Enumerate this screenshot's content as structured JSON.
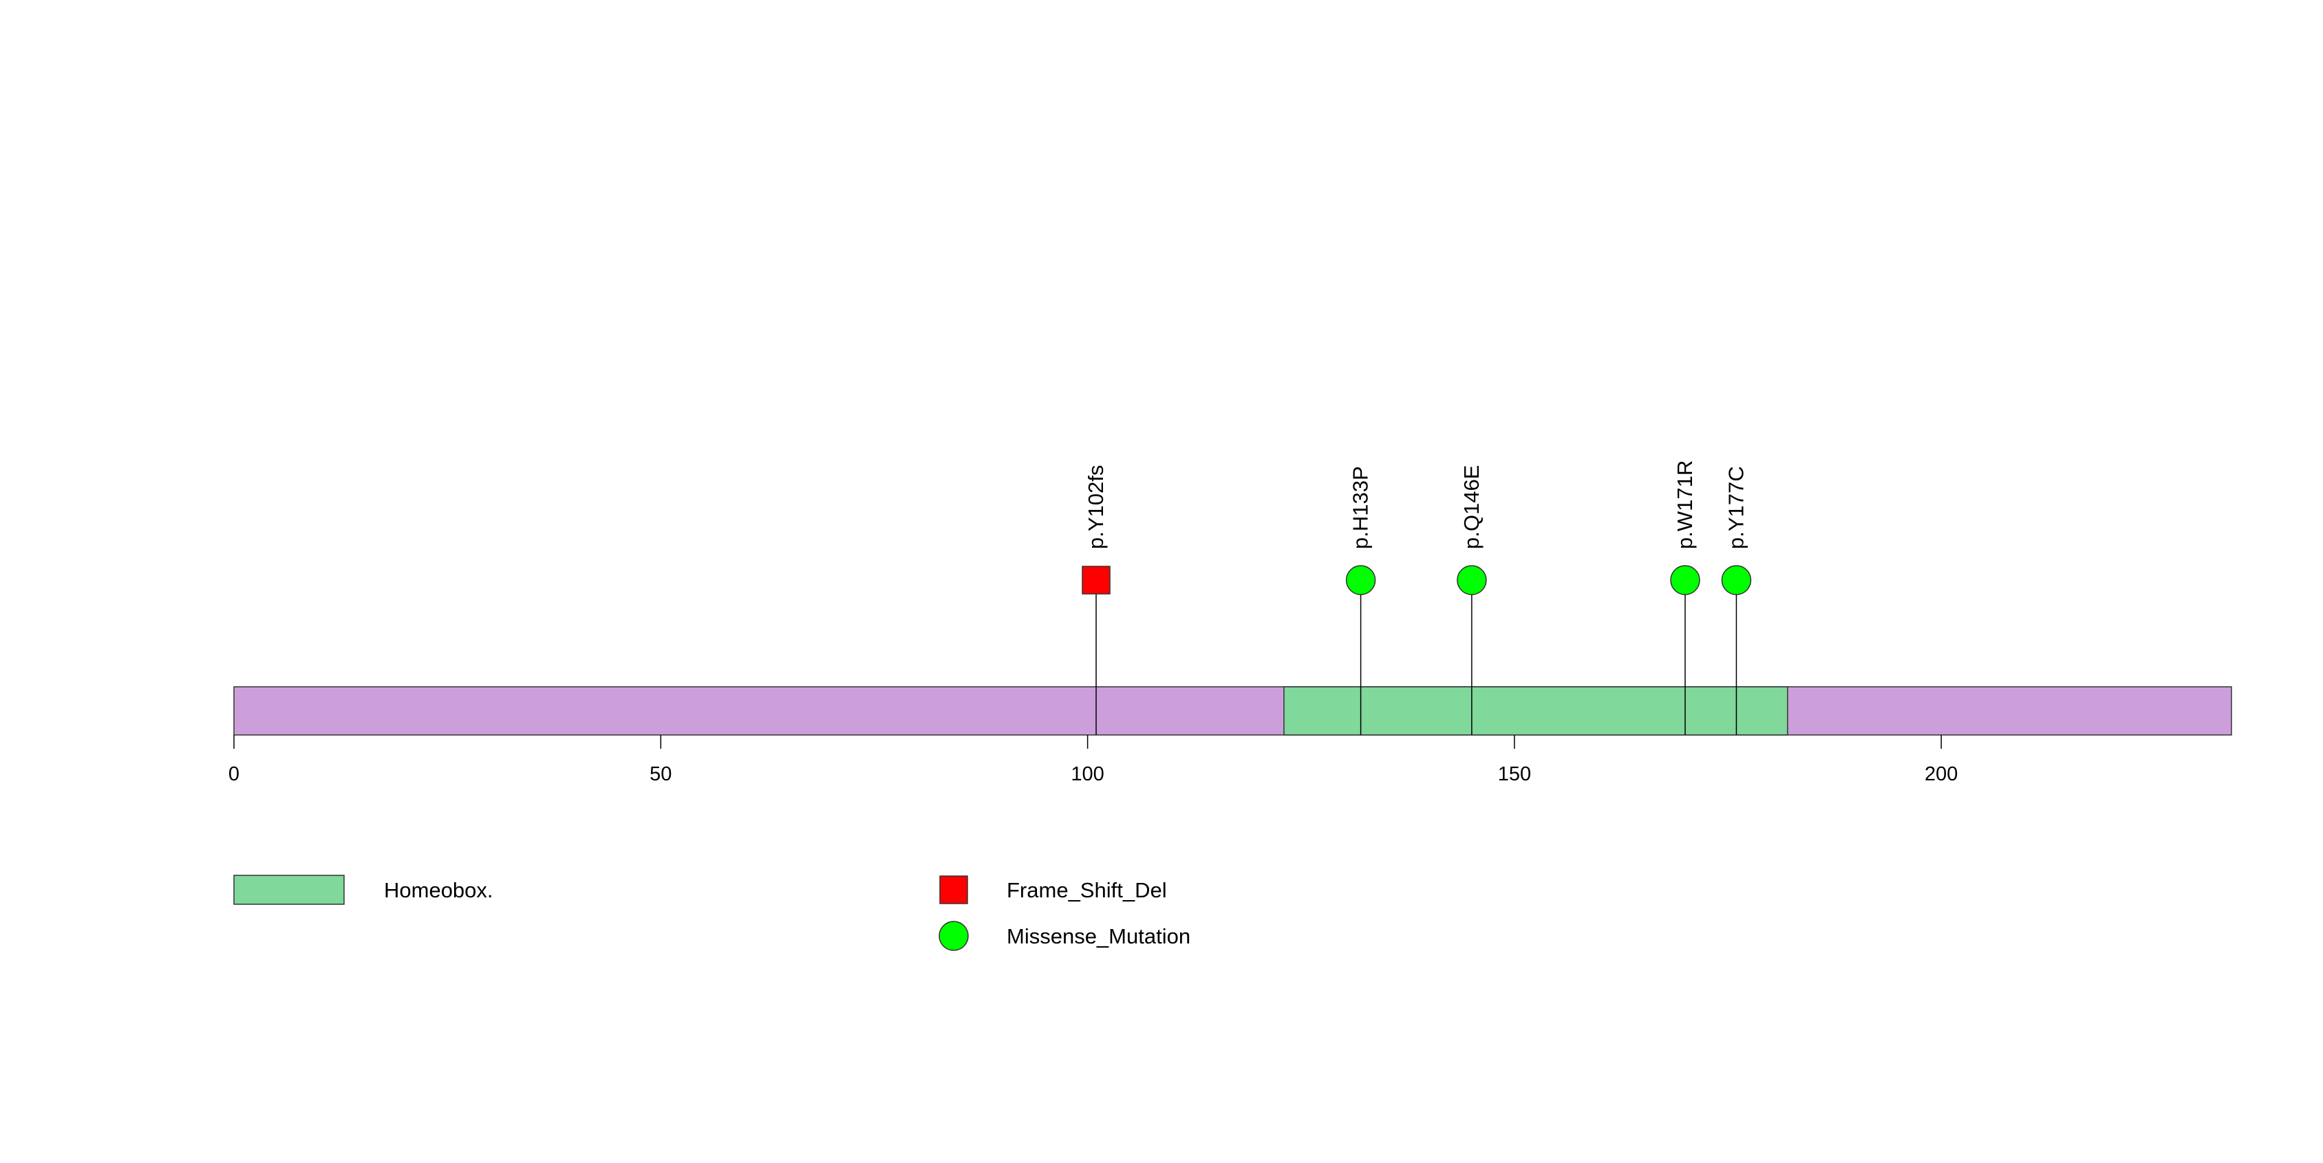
{
  "chart_data": {
    "type": "lollipop",
    "protein_length": 234,
    "xlim": [
      0,
      234
    ],
    "x_ticks": [
      0,
      50,
      100,
      150,
      200
    ],
    "x_tick_labels": [
      "0",
      "50",
      "100",
      "150",
      "200"
    ],
    "backbone_color": "#cc9fdb",
    "domains": [
      {
        "name": "Homeobox.",
        "start": 123,
        "end": 182,
        "color": "#80d89a"
      }
    ],
    "mutations": [
      {
        "label": "p.Y102fs",
        "position": 101,
        "type": "Frame_Shift_Del"
      },
      {
        "label": "p.H133P",
        "position": 132,
        "type": "Missense_Mutation"
      },
      {
        "label": "p.Q146E",
        "position": 145,
        "type": "Missense_Mutation"
      },
      {
        "label": "p.W171R",
        "position": 170,
        "type": "Missense_Mutation"
      },
      {
        "label": "p.Y177C",
        "position": 176,
        "type": "Missense_Mutation"
      }
    ],
    "mutation_types": [
      {
        "name": "Frame_Shift_Del",
        "shape": "square",
        "color": "#ff0000"
      },
      {
        "name": "Missense_Mutation",
        "shape": "circle",
        "color": "#00ff00"
      }
    ],
    "legend": {
      "domains": [
        "Homeobox."
      ],
      "mutation_types": [
        "Frame_Shift_Del",
        "Missense_Mutation"
      ],
      "placement": "bottom-left"
    }
  }
}
